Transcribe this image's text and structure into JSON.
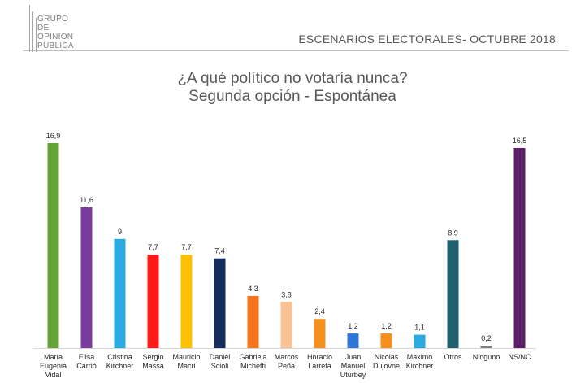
{
  "logo": {
    "lines": [
      "GRUPO",
      "DE",
      "OPINION",
      "PUBLICA"
    ]
  },
  "header": {
    "title": "ESCENARIOS ELECTORALES- OCTUBRE 2018"
  },
  "chart_data": {
    "type": "bar",
    "title": "¿A qué político no votaría nunca?",
    "subtitle": "Segunda opción - Espontánea",
    "xlabel": "",
    "ylabel": "",
    "ylim": [
      0,
      17.5
    ],
    "grid": false,
    "categories": [
      [
        "María",
        "Eugenia",
        "Vidal"
      ],
      [
        "Elisa",
        "Carrió"
      ],
      [
        "Cristina",
        "Kirchner"
      ],
      [
        "Sergio",
        "Massa"
      ],
      [
        "Mauricio",
        "Macri"
      ],
      [
        "Daniel",
        "Scioli"
      ],
      [
        "Gabriela",
        "Michetti"
      ],
      [
        "Marcos",
        "Peña"
      ],
      [
        "Horacio",
        "Larreta"
      ],
      [
        "Juan",
        "Manuel",
        "Uturbey"
      ],
      [
        "Nicolas",
        "Dujovne"
      ],
      [
        "Maximo",
        "Kirchner"
      ],
      [
        "Otros"
      ],
      [
        "Ninguno"
      ],
      [
        "NS/NC"
      ]
    ],
    "values": [
      16.9,
      11.6,
      9,
      7.7,
      7.7,
      7.4,
      4.3,
      3.8,
      2.4,
      1.2,
      1.2,
      1.1,
      8.9,
      0.2,
      16.5
    ],
    "value_labels": [
      "16,9",
      "11,6",
      "9",
      "7,7",
      "7,7",
      "7,4",
      "4,3",
      "3,8",
      "2,4",
      "1,2",
      "1,2",
      "1,1",
      "8,9",
      "0,2",
      "16,5"
    ],
    "colors": [
      "#66a337",
      "#7a3b9e",
      "#29aae1",
      "#ff1a1a",
      "#ffc000",
      "#142d5e",
      "#f5751e",
      "#f8c292",
      "#f5901e",
      "#2e75d6",
      "#f5901e",
      "#29aae1",
      "#1f5f6e",
      "#808080",
      "#5c1e66"
    ]
  }
}
